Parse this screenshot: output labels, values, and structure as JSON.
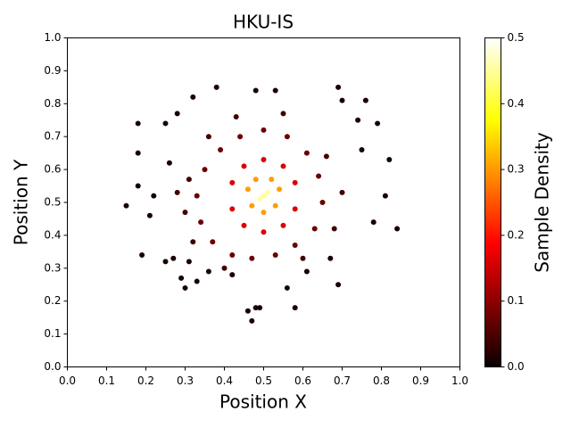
{
  "chart_data": {
    "type": "scatter",
    "title": "HKU-IS",
    "x_label": "Position X",
    "y_label": "Position Y",
    "colorbar_label": "Sample Density",
    "colormap": "hot",
    "x": [
      0.15,
      0.18,
      0.18,
      0.19,
      0.18,
      0.21,
      0.22,
      0.25,
      0.25,
      0.27,
      0.29,
      0.3,
      0.31,
      0.32,
      0.38,
      0.36,
      0.42,
      0.46,
      0.47,
      0.48,
      0.49,
      0.48,
      0.53,
      0.56,
      0.58,
      0.61,
      0.67,
      0.69,
      0.69,
      0.7,
      0.74,
      0.76,
      0.79,
      0.82,
      0.84,
      0.81,
      0.78,
      0.75,
      0.28,
      0.26,
      0.33,
      0.35,
      0.33,
      0.34,
      0.37,
      0.42,
      0.47,
      0.53,
      0.58,
      0.63,
      0.65,
      0.64,
      0.61,
      0.56,
      0.5,
      0.44,
      0.39,
      0.31,
      0.3,
      0.36,
      0.43,
      0.55,
      0.66,
      0.7,
      0.68,
      0.6,
      0.4,
      0.32,
      0.28,
      0.42,
      0.42,
      0.45,
      0.5,
      0.55,
      0.58,
      0.58,
      0.55,
      0.5,
      0.45,
      0.46,
      0.47,
      0.5,
      0.53,
      0.54,
      0.52,
      0.48,
      0.5,
      0.49,
      0.51
    ],
    "y": [
      0.49,
      0.74,
      0.65,
      0.34,
      0.55,
      0.46,
      0.52,
      0.32,
      0.74,
      0.33,
      0.27,
      0.24,
      0.32,
      0.82,
      0.85,
      0.29,
      0.28,
      0.17,
      0.14,
      0.18,
      0.18,
      0.84,
      0.84,
      0.24,
      0.18,
      0.29,
      0.33,
      0.25,
      0.85,
      0.81,
      0.75,
      0.81,
      0.74,
      0.63,
      0.42,
      0.52,
      0.44,
      0.66,
      0.77,
      0.62,
      0.26,
      0.6,
      0.52,
      0.44,
      0.38,
      0.34,
      0.33,
      0.34,
      0.37,
      0.42,
      0.5,
      0.58,
      0.65,
      0.7,
      0.72,
      0.7,
      0.66,
      0.57,
      0.47,
      0.7,
      0.76,
      0.77,
      0.64,
      0.53,
      0.42,
      0.33,
      0.3,
      0.38,
      0.53,
      0.56,
      0.48,
      0.43,
      0.41,
      0.43,
      0.48,
      0.56,
      0.61,
      0.63,
      0.61,
      0.54,
      0.49,
      0.47,
      0.49,
      0.54,
      0.57,
      0.57,
      0.52,
      0.51,
      0.53
    ],
    "density": [
      0.01,
      0.01,
      0.01,
      0.01,
      0.01,
      0.01,
      0.01,
      0.01,
      0.01,
      0.01,
      0.01,
      0.01,
      0.01,
      0.01,
      0.01,
      0.01,
      0.01,
      0.01,
      0.01,
      0.01,
      0.01,
      0.01,
      0.01,
      0.01,
      0.01,
      0.01,
      0.01,
      0.01,
      0.01,
      0.01,
      0.01,
      0.01,
      0.01,
      0.01,
      0.01,
      0.01,
      0.01,
      0.01,
      0.01,
      0.01,
      0.01,
      0.07,
      0.07,
      0.07,
      0.07,
      0.07,
      0.07,
      0.07,
      0.07,
      0.07,
      0.07,
      0.07,
      0.07,
      0.07,
      0.07,
      0.07,
      0.07,
      0.04,
      0.04,
      0.04,
      0.04,
      0.04,
      0.04,
      0.04,
      0.04,
      0.04,
      0.04,
      0.04,
      0.04,
      0.15,
      0.15,
      0.15,
      0.15,
      0.15,
      0.15,
      0.15,
      0.15,
      0.15,
      0.15,
      0.3,
      0.3,
      0.3,
      0.3,
      0.3,
      0.3,
      0.3,
      0.45,
      0.45,
      0.45
    ],
    "xlim": [
      0,
      1
    ],
    "ylim": [
      0,
      1
    ],
    "clim": [
      0,
      0.5
    ],
    "xticks": [
      {
        "value": 0,
        "label": "0.0"
      },
      {
        "value": 0.1,
        "label": "0.1"
      },
      {
        "value": 0.2,
        "label": "0.2"
      },
      {
        "value": 0.3,
        "label": "0.3"
      },
      {
        "value": 0.4,
        "label": "0.4"
      },
      {
        "value": 0.5,
        "label": "0.5"
      },
      {
        "value": 0.6,
        "label": "0.6"
      },
      {
        "value": 0.7,
        "label": "0.7"
      },
      {
        "value": 0.8,
        "label": "0.8"
      },
      {
        "value": 0.9,
        "label": "0.9"
      },
      {
        "value": 1,
        "label": "1.0"
      }
    ],
    "yticks": [
      {
        "value": 0,
        "label": "0.0"
      },
      {
        "value": 0.1,
        "label": "0.1"
      },
      {
        "value": 0.2,
        "label": "0.2"
      },
      {
        "value": 0.3,
        "label": "0.3"
      },
      {
        "value": 0.4,
        "label": "0.4"
      },
      {
        "value": 0.5,
        "label": "0.5"
      },
      {
        "value": 0.6,
        "label": "0.6"
      },
      {
        "value": 0.7,
        "label": "0.7"
      },
      {
        "value": 0.8,
        "label": "0.8"
      },
      {
        "value": 0.9,
        "label": "0.9"
      },
      {
        "value": 1,
        "label": "1.0"
      }
    ],
    "cticks": [
      {
        "value": 0,
        "label": "0.0"
      },
      {
        "value": 0.1,
        "label": "0.1"
      },
      {
        "value": 0.2,
        "label": "0.2"
      },
      {
        "value": 0.3,
        "label": "0.3"
      },
      {
        "value": 0.4,
        "label": "0.4"
      },
      {
        "value": 0.5,
        "label": "0.5"
      }
    ]
  }
}
